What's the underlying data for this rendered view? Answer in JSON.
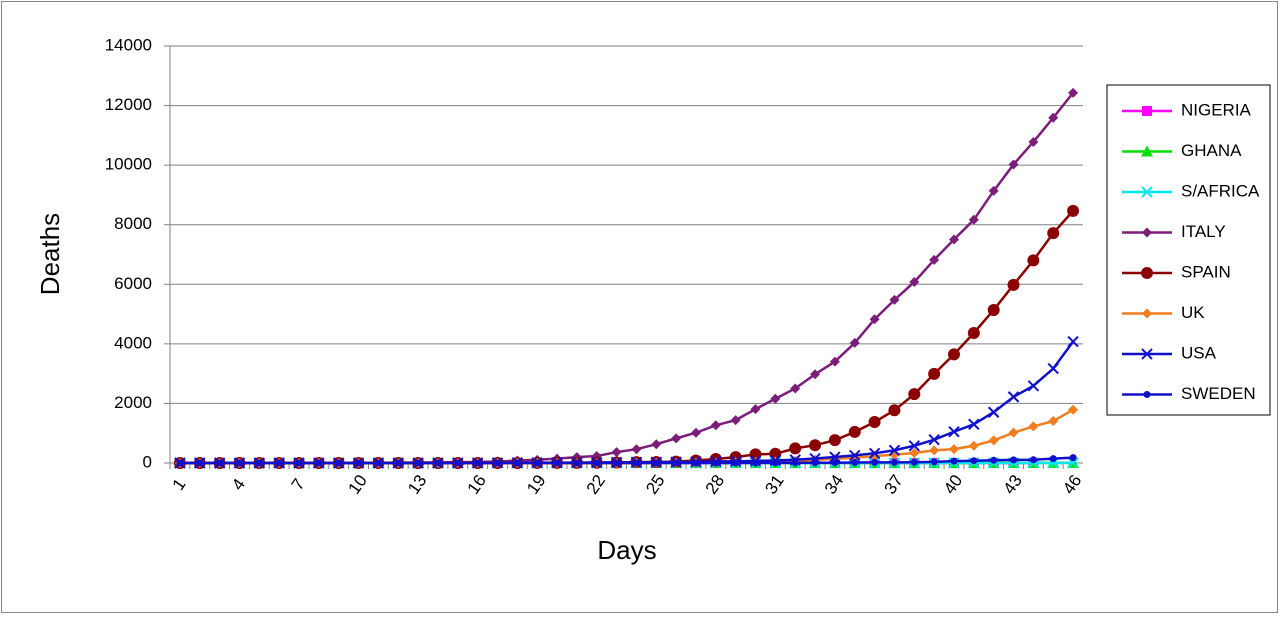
{
  "chart_data": {
    "type": "line",
    "y_label": "Deaths",
    "x_label": "Days",
    "categories": [
      1,
      null,
      null,
      4,
      null,
      null,
      7,
      null,
      null,
      10,
      null,
      null,
      13,
      null,
      null,
      16,
      null,
      null,
      19,
      null,
      null,
      22,
      null,
      null,
      25,
      null,
      null,
      28,
      null,
      null,
      31,
      null,
      null,
      34,
      null,
      null,
      37,
      null,
      null,
      40,
      null,
      null,
      43,
      null,
      null,
      46
    ],
    "ylim": [
      0,
      14000
    ],
    "yticks": [
      0,
      2000,
      4000,
      6000,
      8000,
      10000,
      12000,
      14000
    ],
    "grid": true,
    "legend": "right",
    "series": [
      {
        "name": "NIGERIA",
        "color": "#ff00ff",
        "marker": "square",
        "values": [
          0,
          0,
          0,
          0,
          0,
          0,
          0,
          0,
          0,
          0,
          0,
          0,
          0,
          0,
          0,
          0,
          0,
          0,
          0,
          0,
          0,
          0,
          0,
          0,
          0,
          0,
          0,
          0,
          0,
          0,
          0,
          0,
          0,
          0,
          0,
          0,
          0,
          1,
          1,
          1,
          1,
          1,
          2,
          2,
          null,
          null
        ]
      },
      {
        "name": "GHANA",
        "color": "#00e000",
        "marker": "triangle",
        "values": [
          0,
          0,
          0,
          0,
          0,
          0,
          0,
          0,
          0,
          0,
          0,
          0,
          0,
          0,
          0,
          0,
          0,
          0,
          0,
          0,
          0,
          0,
          0,
          0,
          0,
          0,
          0,
          0,
          0,
          0,
          0,
          0,
          0,
          0,
          0,
          0,
          0,
          0,
          2,
          2,
          2,
          3,
          3,
          5,
          5,
          5
        ]
      },
      {
        "name": "S/AFRICA",
        "color": "#00e5ee",
        "marker": "x",
        "values": [
          0,
          0,
          0,
          0,
          0,
          0,
          0,
          0,
          0,
          0,
          0,
          0,
          0,
          0,
          0,
          0,
          0,
          0,
          0,
          0,
          0,
          0,
          0,
          0,
          0,
          0,
          0,
          0,
          0,
          0,
          0,
          0,
          0,
          0,
          0,
          0,
          0,
          0,
          0,
          0,
          0,
          1,
          1,
          2,
          2,
          5
        ]
      },
      {
        "name": "ITALY",
        "color": "#7b1e7a",
        "marker": "diamond",
        "values": [
          0,
          0,
          0,
          0,
          0,
          0,
          1,
          2,
          3,
          7,
          10,
          12,
          17,
          21,
          29,
          34,
          52,
          79,
          107,
          148,
          197,
          233,
          366,
          463,
          631,
          827,
          1016,
          1266,
          1441,
          1809,
          2158,
          2503,
          2978,
          3405,
          4032,
          4825,
          5476,
          6077,
          6820,
          7503,
          8165,
          9134,
          10023,
          10779,
          11591,
          12428
        ]
      },
      {
        "name": "SPAIN",
        "color": "#8b0000",
        "marker": "circle",
        "values": [
          0,
          0,
          0,
          0,
          0,
          0,
          0,
          0,
          0,
          0,
          0,
          0,
          0,
          0,
          0,
          0,
          0,
          1,
          2,
          3,
          5,
          10,
          17,
          28,
          35,
          47,
          84,
          136,
          196,
          288,
          309,
          491,
          598,
          767,
          1043,
          1375,
          1772,
          2311,
          2991,
          3647,
          4365,
          5138,
          5982,
          6803,
          7716,
          8464
        ]
      },
      {
        "name": "UK",
        "color": "#f07d1e",
        "marker": "diamond",
        "values": [
          0,
          0,
          0,
          0,
          0,
          0,
          0,
          0,
          0,
          0,
          0,
          0,
          0,
          0,
          0,
          0,
          0,
          0,
          0,
          1,
          1,
          2,
          2,
          3,
          6,
          6,
          8,
          10,
          21,
          35,
          55,
          71,
          104,
          144,
          177,
          233,
          281,
          335,
          422,
          465,
          578,
          759,
          1019,
          1228,
          1408,
          1789
        ]
      },
      {
        "name": "USA",
        "color": "#1010cc",
        "marker": "x",
        "values": [
          0,
          0,
          0,
          0,
          0,
          0,
          0,
          0,
          0,
          0,
          0,
          0,
          0,
          0,
          1,
          1,
          6,
          9,
          11,
          12,
          14,
          19,
          22,
          26,
          28,
          31,
          40,
          50,
          57,
          68,
          86,
          108,
          150,
          200,
          255,
          326,
          427,
          578,
          784,
          1050,
          1301,
          1704,
          2220,
          2591,
          3170,
          4076
        ]
      },
      {
        "name": "SWEDEN",
        "color": "#1010cc",
        "marker": "dot",
        "values": [
          0,
          0,
          0,
          0,
          0,
          0,
          0,
          0,
          0,
          0,
          0,
          0,
          0,
          0,
          0,
          0,
          0,
          0,
          0,
          0,
          0,
          0,
          0,
          0,
          0,
          1,
          1,
          1,
          2,
          3,
          6,
          7,
          10,
          10,
          16,
          20,
          21,
          25,
          36,
          62,
          77,
          92,
          105,
          110,
          146,
          180
        ]
      }
    ]
  }
}
